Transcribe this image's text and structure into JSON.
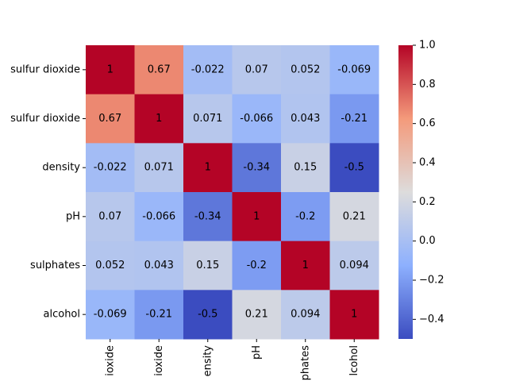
{
  "chart_data": {
    "type": "heatmap",
    "x_labels": [
      "ioxide",
      "ioxide",
      "ensity",
      "pH",
      "phates",
      "lcohol"
    ],
    "y_labels": [
      "sulfur dioxide",
      "sulfur dioxide",
      "density",
      "pH",
      "sulphates",
      "alcohol"
    ],
    "values": [
      [
        1,
        0.67,
        -0.022,
        0.07,
        0.052,
        -0.069
      ],
      [
        0.67,
        1,
        0.071,
        -0.066,
        0.043,
        -0.21
      ],
      [
        -0.022,
        0.071,
        1,
        -0.34,
        0.15,
        -0.5
      ],
      [
        0.07,
        -0.066,
        -0.34,
        1,
        -0.2,
        0.21
      ],
      [
        0.052,
        0.043,
        0.15,
        -0.2,
        1,
        0.094
      ],
      [
        -0.069,
        -0.21,
        -0.5,
        0.21,
        0.094,
        1
      ]
    ],
    "colormap": [
      "#3b4cc0",
      "#8db0fe",
      "#dddcdc",
      "#f49a7b",
      "#b40426"
    ],
    "zlim": [
      -0.5,
      1
    ],
    "zticks": [
      {
        "value": -0.4,
        "label": "−0.4"
      },
      {
        "value": -0.2,
        "label": "−0.2"
      },
      {
        "value": 0,
        "label": "0.0"
      },
      {
        "value": 0.2,
        "label": "0.2"
      },
      {
        "value": 0.4,
        "label": "0.4"
      },
      {
        "value": 0.6,
        "label": "0.6"
      },
      {
        "value": 0.8,
        "label": "0.8"
      },
      {
        "value": 1,
        "label": "1.0"
      }
    ]
  }
}
